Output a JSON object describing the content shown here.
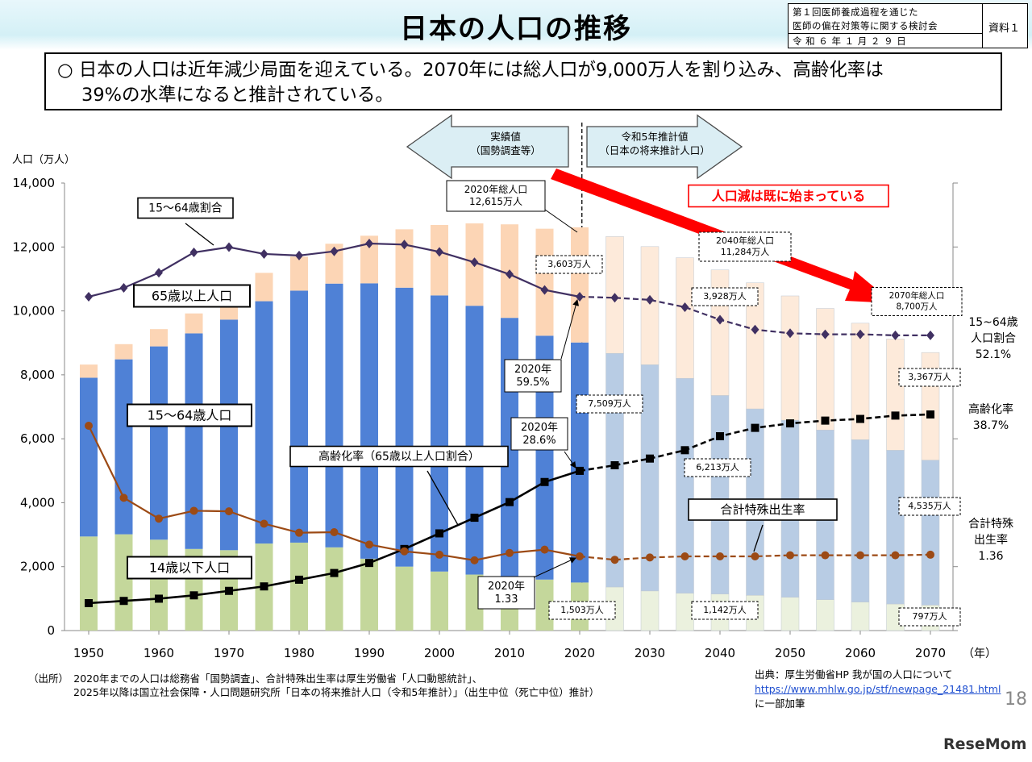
{
  "page": {
    "title": "日本の人口の推移",
    "meta_line1": "第１回医師養成過程を通じた",
    "meta_line2": "医師の偏在対策等に関する検討会",
    "meta_line3": "令 和 ６ 年 １ 月 ２ ９ 日",
    "meta_ref": "資料１",
    "summary_line1": "○ 日本の人口は近年減少局面を迎えている。2070年には総人口が9,000万人を割り込み、高齢化率は",
    "summary_line2": "39%の水準になると推計されている。",
    "source_1": "（出所）　2020年までの人口は総務省「国勢調査」、合計特殊出生率は厚生労働省「人口動態統計」、",
    "source_2": "2025年以降は国立社会保障・人口問題研究所「日本の将来推計人口（令和5年推計）」（出生中位（死亡中位）推計）",
    "credit_1": "出典：厚生労働省HP 我が国の人口について",
    "credit_url": "https://www.mhlw.go.jp/stf/newpage_21481.html",
    "credit_2": "に一部加筆",
    "page_number": "18",
    "brand": "ReseMom"
  },
  "chart_data": {
    "type": "bar",
    "ylabel": "人口（万人）",
    "xlabel": "（年）",
    "ylim": [
      0,
      14000
    ],
    "y_ticks": [
      "0",
      "2,000",
      "4,000",
      "6,000",
      "8,000",
      "10,000",
      "12,000",
      "14,000"
    ],
    "x_ticks": [
      "1950",
      "1960",
      "1970",
      "1980",
      "1990",
      "2000",
      "2010",
      "2020",
      "2030",
      "2040",
      "2050",
      "2060",
      "2070"
    ],
    "categories": [
      "1950",
      "1955",
      "1960",
      "1965",
      "1970",
      "1975",
      "1980",
      "1985",
      "1990",
      "1995",
      "2000",
      "2005",
      "2010",
      "2015",
      "2020",
      "2025",
      "2030",
      "2035",
      "2040",
      "2045",
      "2050",
      "2055",
      "2060",
      "2065",
      "2070"
    ],
    "projection_from": "2025",
    "series": [
      {
        "name": "14歳以下人口",
        "values": [
          2943,
          3012,
          2843,
          2553,
          2515,
          2722,
          2751,
          2603,
          2249,
          2001,
          1847,
          1752,
          1680,
          1595,
          1503,
          1363,
          1240,
          1169,
          1142,
          1103,
          1041,
          966,
          893,
          832,
          797
        ]
      },
      {
        "name": "15〜64歳人口",
        "values": [
          4966,
          5473,
          6047,
          6744,
          7212,
          7581,
          7883,
          8251,
          8614,
          8726,
          8638,
          8409,
          8103,
          7629,
          7509,
          7310,
          7076,
          6722,
          6213,
          5832,
          5540,
          5307,
          5078,
          4809,
          4535
        ]
      },
      {
        "name": "65歳以上人口",
        "values": [
          412,
          475,
          540,
          624,
          739,
          887,
          1065,
          1247,
          1489,
          1826,
          2204,
          2576,
          2925,
          3347,
          3603,
          3653,
          3696,
          3773,
          3928,
          3945,
          3888,
          3804,
          3644,
          3481,
          3367
        ]
      }
    ],
    "lines": [
      {
        "name": "15〜64歳割合",
        "values": [
          59.5,
          61.2,
          64.1,
          68.0,
          69.0,
          67.7,
          67.4,
          68.2,
          69.7,
          69.5,
          68.1,
          66.1,
          63.8,
          60.8,
          59.5,
          59.3,
          58.9,
          57.5,
          55.1,
          53.2,
          52.5,
          52.3,
          52.3,
          52.1,
          52.1
        ]
      },
      {
        "name": "高齢化率（65歳以上人口割合）",
        "values": [
          4.9,
          5.3,
          5.7,
          6.3,
          7.1,
          7.9,
          9.1,
          10.3,
          12.1,
          14.6,
          17.4,
          20.2,
          23.0,
          26.6,
          28.6,
          29.6,
          30.8,
          32.3,
          34.8,
          36.3,
          37.1,
          37.6,
          37.9,
          38.5,
          38.7
        ]
      },
      {
        "name": "合計特殊出生率",
        "values": [
          3.65,
          2.37,
          2.0,
          2.14,
          2.13,
          1.91,
          1.75,
          1.76,
          1.54,
          1.42,
          1.36,
          1.26,
          1.39,
          1.45,
          1.33,
          1.27,
          1.31,
          1.33,
          1.33,
          1.33,
          1.35,
          1.35,
          1.35,
          1.35,
          1.36
        ]
      }
    ],
    "labels": {
      "arrow_actual_1": "実績値",
      "arrow_actual_2": "（国勢調査等）",
      "arrow_proj_1": "令和5年推計値",
      "arrow_proj_2": "（日本の将来推計人口）",
      "decline": "人口減は既に始まっている",
      "total2020_1": "2020年総人口",
      "total2020_2": "12,615万人",
      "total2040_1": "2040年総人口",
      "total2040_2": "11,284万人",
      "total2070_1": "2070年総人口",
      "total2070_2": "8,700万人",
      "series_label_65": "65歳以上人口",
      "series_label_1564": "15〜64歳人口",
      "series_label_14": "14歳以下人口",
      "line_label_ratio": "15〜64歳割合",
      "line_label_aging": "高齢化率（65歳以上人口割合）",
      "line_label_tfr": "合計特殊出生率",
      "c2020_ratio_1": "2020年",
      "c2020_ratio_2": "59.5%",
      "c2020_aging_1": "2020年",
      "c2020_aging_2": "28.6%",
      "c2020_tfr_1": "2020年",
      "c2020_tfr_2": "1.33",
      "v65_2020": "3,603万人",
      "v1564_2020": "7,509万人",
      "v14_2020": "1,503万人",
      "v65_2040": "3,928万人",
      "v1564_2040": "6,213万人",
      "v14_2040": "1,142万人",
      "v65_2070": "3,367万人",
      "v1564_2070": "4,535万人",
      "v14_2070": "797万人",
      "right_ratio_1": "15~64歳",
      "right_ratio_2": "人口割合",
      "right_ratio_3": "52.1%",
      "right_aging_1": "高齢化率",
      "right_aging_2": "38.7%",
      "right_tfr_1": "合計特殊",
      "right_tfr_2": "出生率",
      "right_tfr_3": "1.36"
    },
    "colors": {
      "under14_actual": "#c4d79b",
      "under14_proj": "#ebf1de",
      "mid_actual": "#4f81d6",
      "mid_proj": "#b8cce4",
      "old_actual": "#fcd5b5",
      "old_proj": "#fdeada",
      "ratio_line": "#403062",
      "aging_line": "#000000",
      "tfr_line": "#9c4a15",
      "decline_arrow": "#ff0000"
    }
  }
}
